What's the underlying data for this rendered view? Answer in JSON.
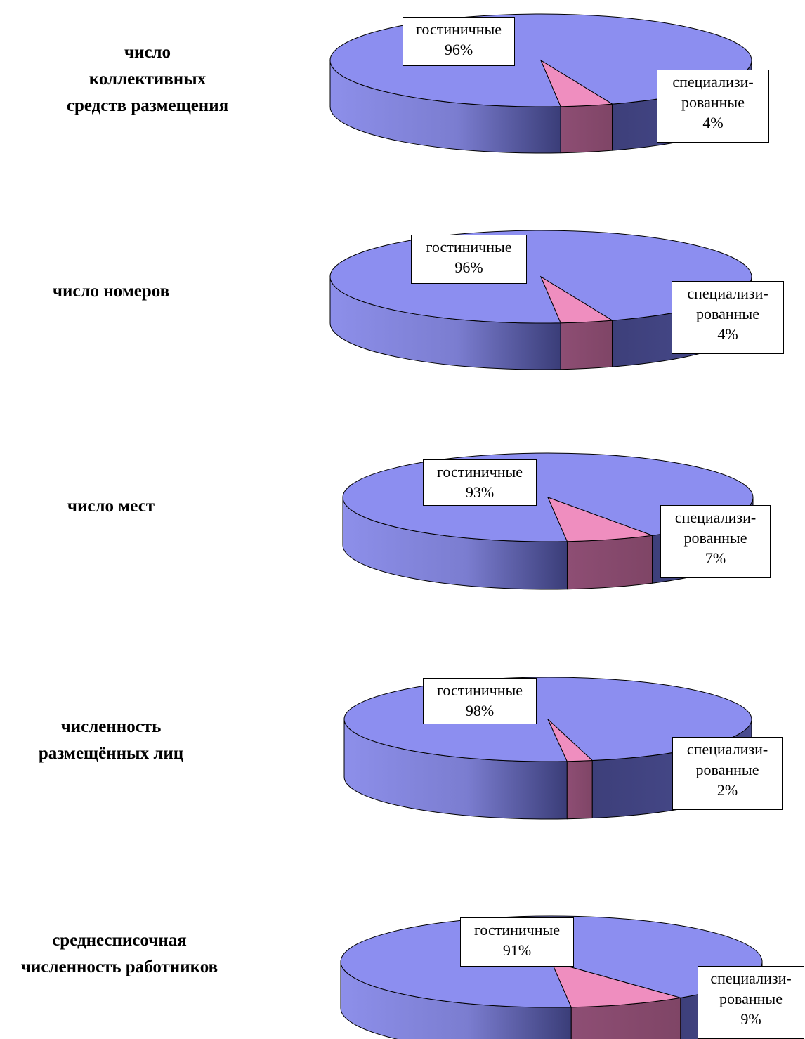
{
  "colors": {
    "hotel_top": "#8c8ef0",
    "hotel_side_light": "#8d8fea",
    "hotel_side_dark": "#3a3d78",
    "special_top": "#ef8ebf",
    "special_side": "#7f4566",
    "outline": "#000000"
  },
  "chart_data": [
    {
      "type": "pie",
      "title": [
        "число",
        "коллективных",
        "средств размещения"
      ],
      "slices": [
        {
          "label_lines": [
            "гостиничные"
          ],
          "value_text": "96%",
          "value": 96
        },
        {
          "label_lines": [
            "специализи-",
            "рованные"
          ],
          "value_text": "4%",
          "value": 4
        }
      ]
    },
    {
      "type": "pie",
      "title": [
        "число номеров"
      ],
      "slices": [
        {
          "label_lines": [
            "гостиничные"
          ],
          "value_text": "96%",
          "value": 96
        },
        {
          "label_lines": [
            "специализи-",
            "рованные"
          ],
          "value_text": "4%",
          "value": 4
        }
      ]
    },
    {
      "type": "pie",
      "title": [
        "число мест"
      ],
      "slices": [
        {
          "label_lines": [
            "гостиничные"
          ],
          "value_text": "93%",
          "value": 93
        },
        {
          "label_lines": [
            "специализи-",
            "рованные"
          ],
          "value_text": "7%",
          "value": 7
        }
      ]
    },
    {
      "type": "pie",
      "title": [
        "численность",
        "размещённых лиц"
      ],
      "slices": [
        {
          "label_lines": [
            "гостиничные"
          ],
          "value_text": "98%",
          "value": 98
        },
        {
          "label_lines": [
            "специализи-",
            "рованные"
          ],
          "value_text": "2%",
          "value": 2
        }
      ]
    },
    {
      "type": "pie",
      "title": [
        "среднесписочная",
        "численность работников"
      ],
      "slices": [
        {
          "label_lines": [
            "гостиничные"
          ],
          "value_text": "91%",
          "value": 91
        },
        {
          "label_lines": [
            "специализи-",
            "рованные"
          ],
          "value_text": "9%",
          "value": 9
        }
      ]
    }
  ]
}
